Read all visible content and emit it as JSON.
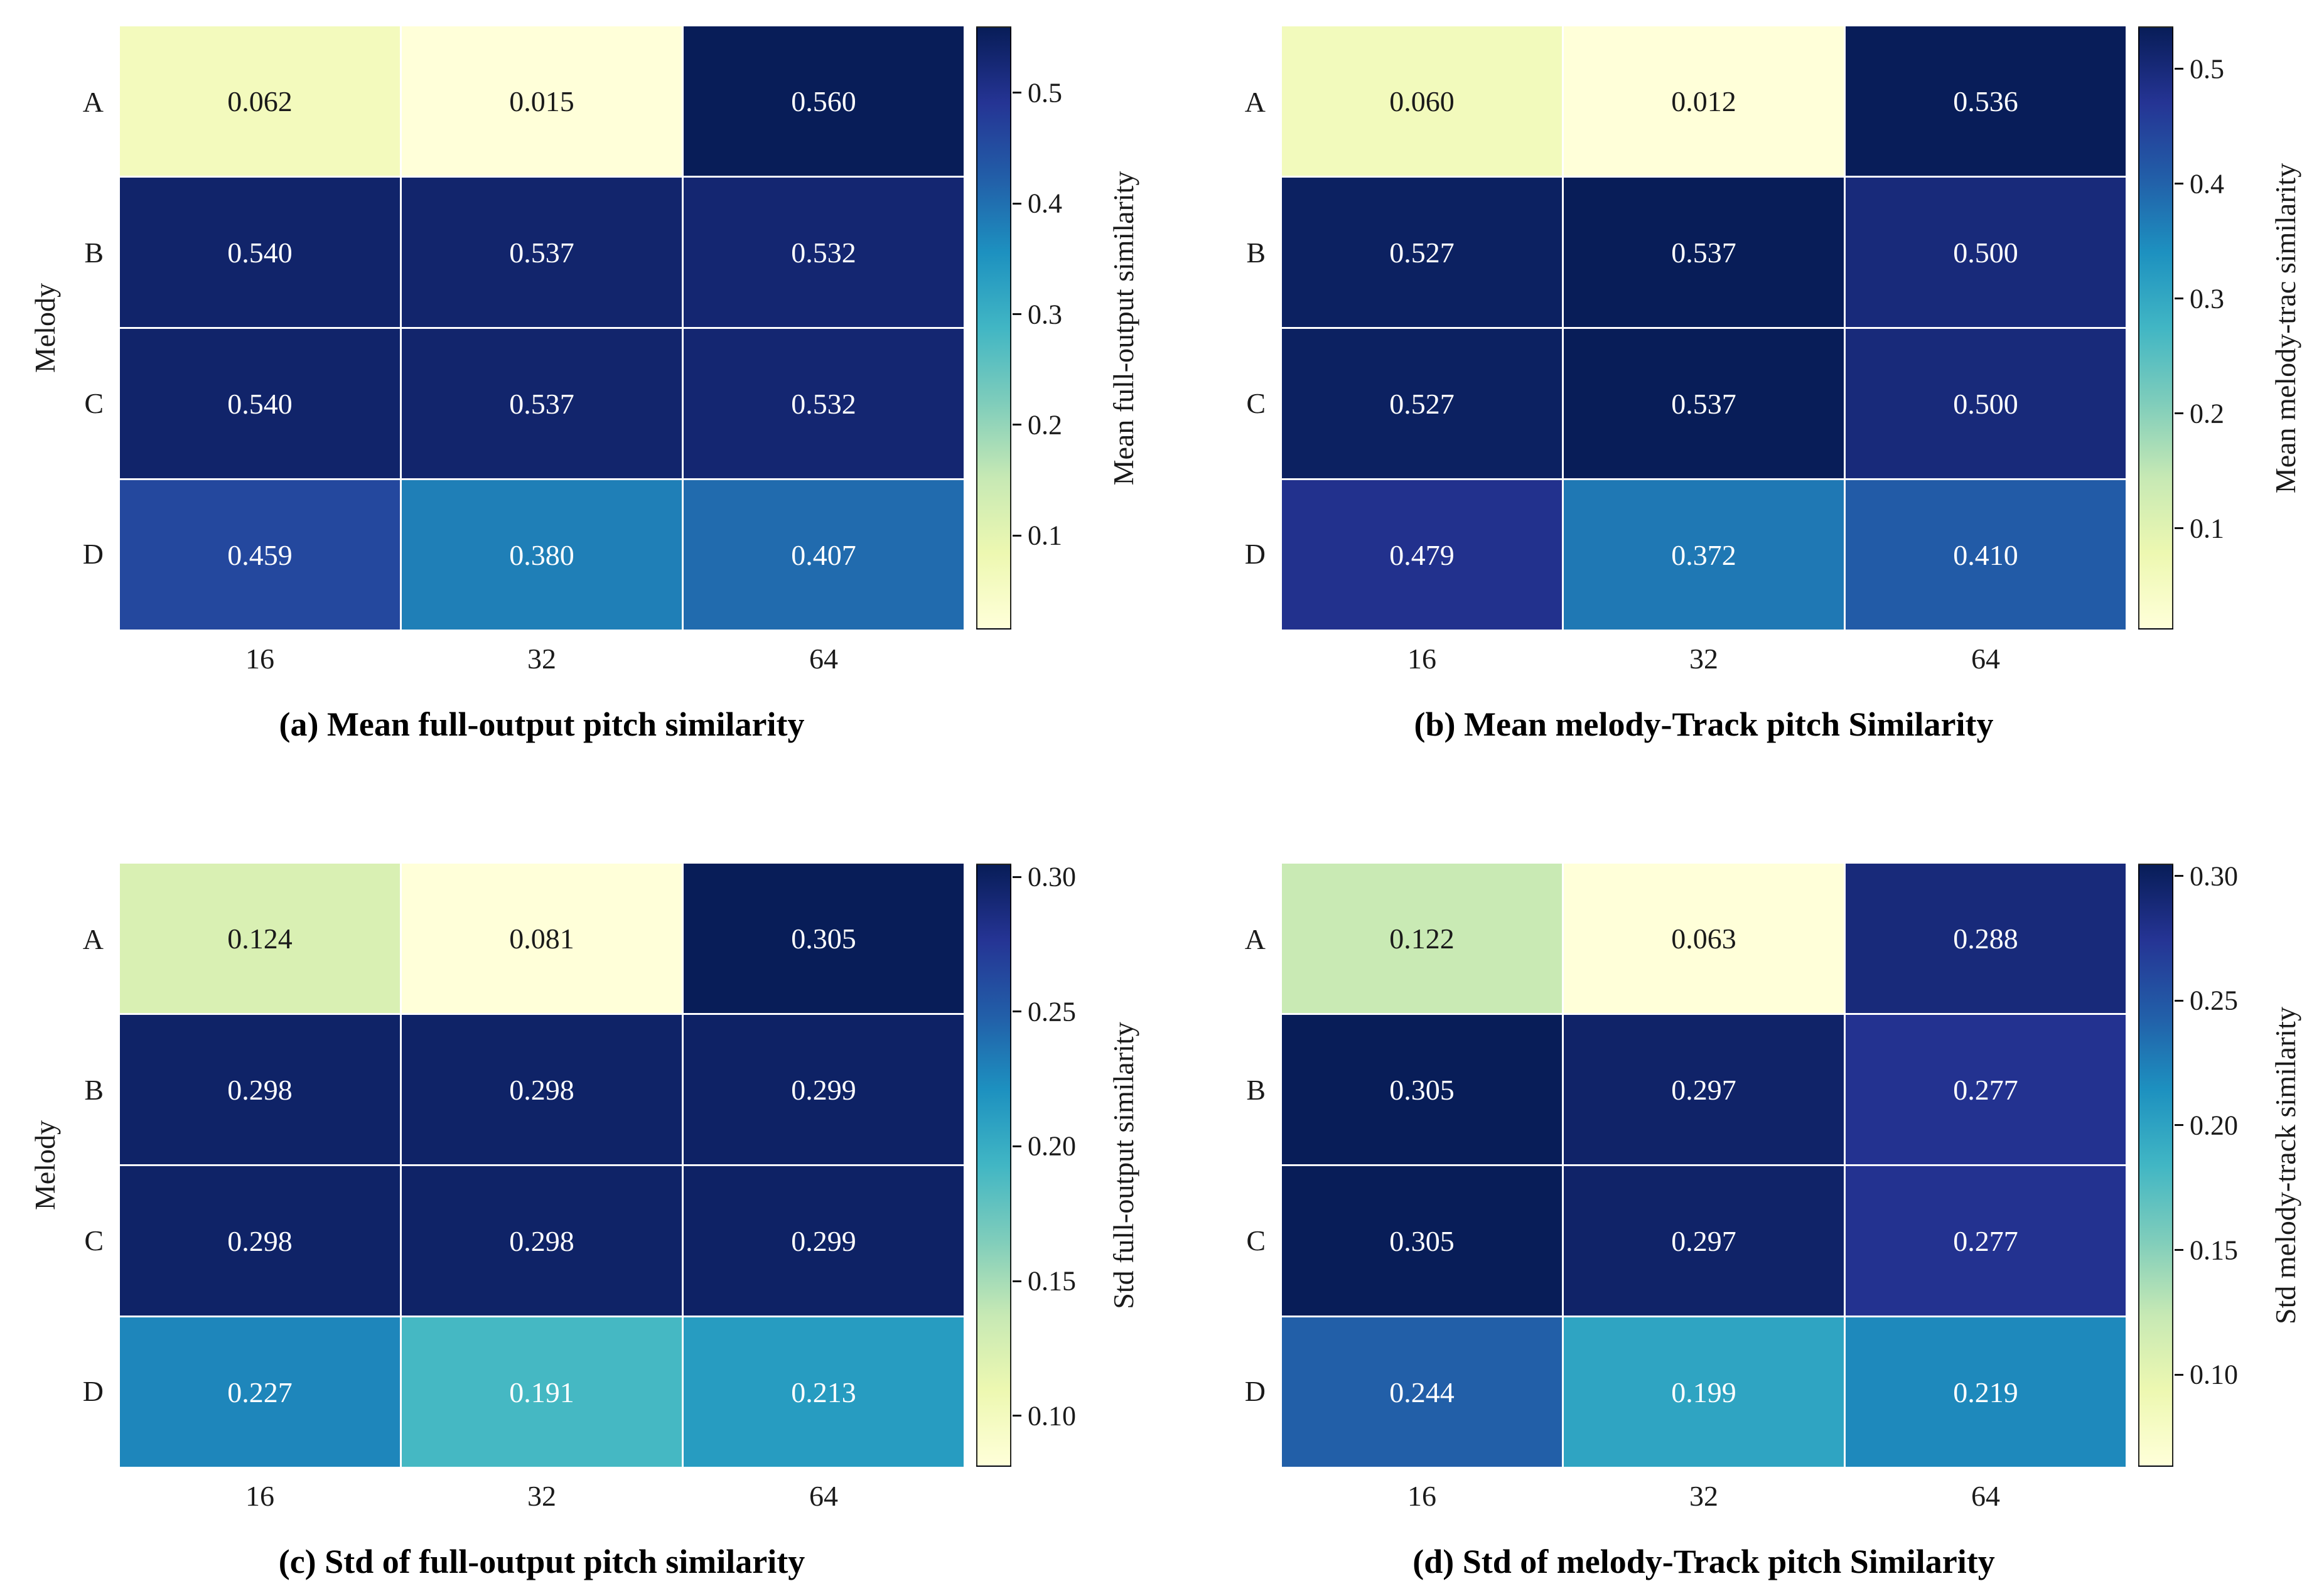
{
  "page": {
    "background": "#ffffff"
  },
  "colormap": {
    "name": "YlGnBu",
    "stops": [
      "#ffffd9",
      "#edf8b1",
      "#c7e9b4",
      "#7fcdbb",
      "#41b6c4",
      "#1d91c0",
      "#225ea8",
      "#253494",
      "#081d58"
    ]
  },
  "chart_data": [
    {
      "type": "heatmap",
      "caption": "(a) Mean full-output pitch similarity",
      "ylabel": "Melody",
      "rows": [
        "A",
        "B",
        "C",
        "D"
      ],
      "cols": [
        "16",
        "32",
        "64"
      ],
      "values": [
        [
          0.062,
          0.015,
          0.56
        ],
        [
          0.54,
          0.537,
          0.532
        ],
        [
          0.54,
          0.537,
          0.532
        ],
        [
          0.459,
          0.38,
          0.407
        ]
      ],
      "vmin": 0.015,
      "vmax": 0.56,
      "colorbar_label": "Mean full-output similarity",
      "colorbar_ticks": [
        {
          "value": 0.1,
          "label": "0.1"
        },
        {
          "value": 0.2,
          "label": "0.2"
        },
        {
          "value": 0.3,
          "label": "0.3"
        },
        {
          "value": 0.4,
          "label": "0.4"
        },
        {
          "value": 0.5,
          "label": "0.5"
        }
      ]
    },
    {
      "type": "heatmap",
      "caption": "(b) Mean melody-Track pitch Similarity",
      "ylabel": "",
      "rows": [
        "A",
        "B",
        "C",
        "D"
      ],
      "cols": [
        "16",
        "32",
        "64"
      ],
      "values": [
        [
          0.06,
          0.012,
          0.536
        ],
        [
          0.527,
          0.537,
          0.5
        ],
        [
          0.527,
          0.537,
          0.5
        ],
        [
          0.479,
          0.372,
          0.41
        ]
      ],
      "vmin": 0.012,
      "vmax": 0.537,
      "colorbar_label": "Mean melody-trac similarity",
      "colorbar_ticks": [
        {
          "value": 0.1,
          "label": "0.1"
        },
        {
          "value": 0.2,
          "label": "0.2"
        },
        {
          "value": 0.3,
          "label": "0.3"
        },
        {
          "value": 0.4,
          "label": "0.4"
        },
        {
          "value": 0.5,
          "label": "0.5"
        }
      ]
    },
    {
      "type": "heatmap",
      "caption": "(c) Std of full-output pitch similarity",
      "ylabel": "Melody",
      "rows": [
        "A",
        "B",
        "C",
        "D"
      ],
      "cols": [
        "16",
        "32",
        "64"
      ],
      "values": [
        [
          0.124,
          0.081,
          0.305
        ],
        [
          0.298,
          0.298,
          0.299
        ],
        [
          0.298,
          0.298,
          0.299
        ],
        [
          0.227,
          0.191,
          0.213
        ]
      ],
      "vmin": 0.081,
      "vmax": 0.305,
      "colorbar_label": "Std full-output similarity",
      "colorbar_ticks": [
        {
          "value": 0.1,
          "label": "0.10"
        },
        {
          "value": 0.15,
          "label": "0.15"
        },
        {
          "value": 0.2,
          "label": "0.20"
        },
        {
          "value": 0.25,
          "label": "0.25"
        },
        {
          "value": 0.3,
          "label": "0.30"
        }
      ]
    },
    {
      "type": "heatmap",
      "caption": "(d) Std of melody-Track pitch Similarity",
      "ylabel": "",
      "rows": [
        "A",
        "B",
        "C",
        "D"
      ],
      "cols": [
        "16",
        "32",
        "64"
      ],
      "values": [
        [
          0.122,
          0.063,
          0.288
        ],
        [
          0.305,
          0.297,
          0.277
        ],
        [
          0.305,
          0.297,
          0.277
        ],
        [
          0.244,
          0.199,
          0.219
        ]
      ],
      "vmin": 0.063,
      "vmax": 0.305,
      "colorbar_label": "Std melody-track similarity",
      "colorbar_ticks": [
        {
          "value": 0.1,
          "label": "0.10"
        },
        {
          "value": 0.15,
          "label": "0.15"
        },
        {
          "value": 0.2,
          "label": "0.20"
        },
        {
          "value": 0.25,
          "label": "0.25"
        },
        {
          "value": 0.3,
          "label": "0.30"
        }
      ]
    }
  ]
}
